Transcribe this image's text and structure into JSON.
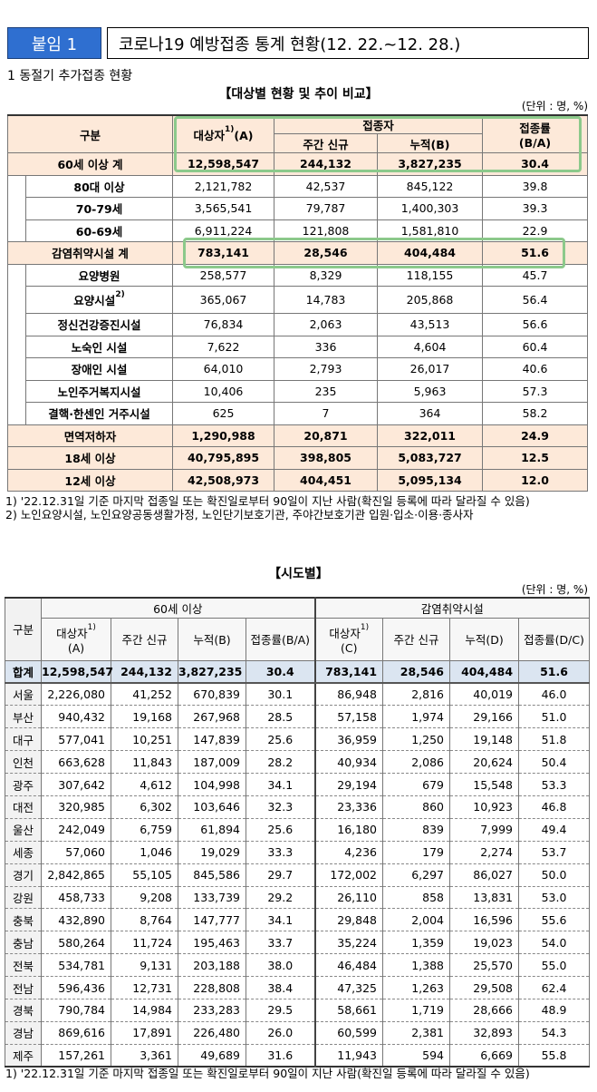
{
  "header": {
    "badge": "붙임 1",
    "title": "코로나19 예방접종 통계 현황(12. 22.~12. 28.)"
  },
  "section": "1  동절기 추가접종 현황",
  "table1": {
    "title": "【대상별 현황 및 추이 비교】",
    "unit": "(단위 : 명, %)",
    "header": {
      "corner": "구분",
      "group": "접종자",
      "columns": [
        {
          "text": "대상자",
          "sup": "1)",
          "suffix": "(A)"
        },
        "주간 신규",
        "누적(B)",
        {
          "text": "접종률",
          "line2": "(B/A)"
        }
      ]
    },
    "sections": [
      {
        "label": "60세 이상 계",
        "cells": [
          "12,598,547",
          "244,132",
          "3,827,235",
          "30.4"
        ],
        "items": [
          {
            "label": "80대 이상",
            "cells": [
              "2,121,782",
              "42,537",
              "845,122",
              "39.8"
            ]
          },
          {
            "label": "70-79세",
            "cells": [
              "3,565,541",
              "79,787",
              "1,400,303",
              "39.3"
            ]
          },
          {
            "label": "60-69세",
            "cells": [
              "6,911,224",
              "121,808",
              "1,581,810",
              "22.9"
            ]
          }
        ]
      },
      {
        "label": "감염취약시설 계",
        "cells": [
          "783,141",
          "28,546",
          "404,484",
          "51.6"
        ],
        "items": [
          {
            "label": "요양병원",
            "cells": [
              "258,577",
              "8,329",
              "118,155",
              "45.7"
            ]
          },
          {
            "label": "요양시설",
            "sup": "2)",
            "cells": [
              "365,067",
              "14,783",
              "205,868",
              "56.4"
            ]
          },
          {
            "label": "정신건강증진시설",
            "cells": [
              "76,834",
              "2,063",
              "43,513",
              "56.6"
            ]
          },
          {
            "label": "노숙인 시설",
            "cells": [
              "7,622",
              "336",
              "4,604",
              "60.4"
            ]
          },
          {
            "label": "장애인 시설",
            "cells": [
              "64,010",
              "2,793",
              "26,017",
              "40.6"
            ]
          },
          {
            "label": "노인주거복지시설",
            "cells": [
              "10,406",
              "235",
              "5,963",
              "57.3"
            ]
          },
          {
            "label": "결핵·한센인 거주시설",
            "cells": [
              "625",
              "7",
              "364",
              "58.2"
            ]
          }
        ]
      },
      {
        "label": "면역저하자",
        "cells": [
          "1,290,988",
          "20,871",
          "322,011",
          "24.9"
        ]
      },
      {
        "label": "18세 이상",
        "cells": [
          "40,795,895",
          "398,805",
          "5,083,727",
          "12.5"
        ]
      },
      {
        "label": "12세 이상",
        "cells": [
          "42,508,973",
          "404,451",
          "5,095,134",
          "12.0"
        ]
      }
    ],
    "notes": [
      "1) '22.12.31일 기준 마지막 접종일 또는 확진일로부터 90일이 지난 사람(확진일 등록에 따라 달라질 수 있음)",
      "2) 노인요양시설, 노인요양공동생활가정, 노인단기보호기관, 주야간보호기관 입원·입소·이용·종사자"
    ]
  },
  "table2": {
    "title": "【시도별】",
    "unit": "(단위 : 명, %)",
    "header": {
      "corner": "구분",
      "group1": "60세 이상",
      "group2": "감염취약시설",
      "columns": [
        {
          "text": "대상자",
          "sup": "1)",
          "line2": "(A)"
        },
        "주간 신규",
        "누적(B)",
        "접종률(B/A)",
        {
          "text": "대상자",
          "sup": "1)",
          "line2": "(C)"
        },
        "주간 신규",
        "누적(D)",
        "접종률(D/C)"
      ]
    },
    "total": {
      "label": "합계",
      "cells": [
        "12,598,547",
        "244,132",
        "3,827,235",
        "30.4",
        "783,141",
        "28,546",
        "404,484",
        "51.6"
      ]
    },
    "rows": [
      {
        "label": "서울",
        "cells": [
          "2,226,080",
          "41,252",
          "670,839",
          "30.1",
          "86,948",
          "2,816",
          "40,019",
          "46.0"
        ]
      },
      {
        "label": "부산",
        "cells": [
          "940,432",
          "19,168",
          "267,968",
          "28.5",
          "57,158",
          "1,974",
          "29,166",
          "51.0"
        ]
      },
      {
        "label": "대구",
        "cells": [
          "577,041",
          "10,251",
          "147,839",
          "25.6",
          "36,959",
          "1,250",
          "19,148",
          "51.8"
        ]
      },
      {
        "label": "인천",
        "cells": [
          "663,628",
          "11,843",
          "187,009",
          "28.2",
          "40,934",
          "2,086",
          "20,624",
          "50.4"
        ]
      },
      {
        "label": "광주",
        "cells": [
          "307,642",
          "4,612",
          "104,998",
          "34.1",
          "29,194",
          "679",
          "15,548",
          "53.3"
        ]
      },
      {
        "label": "대전",
        "cells": [
          "320,985",
          "6,302",
          "103,646",
          "32.3",
          "23,336",
          "860",
          "10,923",
          "46.8"
        ]
      },
      {
        "label": "울산",
        "cells": [
          "242,049",
          "6,759",
          "61,894",
          "25.6",
          "16,180",
          "839",
          "7,999",
          "49.4"
        ]
      },
      {
        "label": "세종",
        "cells": [
          "57,060",
          "1,046",
          "19,029",
          "33.3",
          "4,236",
          "179",
          "2,274",
          "53.7"
        ]
      },
      {
        "label": "경기",
        "cells": [
          "2,842,865",
          "55,105",
          "845,586",
          "29.7",
          "172,002",
          "6,297",
          "86,027",
          "50.0"
        ]
      },
      {
        "label": "강원",
        "cells": [
          "458,733",
          "9,208",
          "133,739",
          "29.2",
          "26,110",
          "858",
          "13,831",
          "53.0"
        ]
      },
      {
        "label": "충북",
        "cells": [
          "432,890",
          "8,764",
          "147,777",
          "34.1",
          "29,848",
          "2,004",
          "16,596",
          "55.6"
        ]
      },
      {
        "label": "충남",
        "cells": [
          "580,264",
          "11,724",
          "195,463",
          "33.7",
          "35,224",
          "1,359",
          "19,023",
          "54.0"
        ]
      },
      {
        "label": "전북",
        "cells": [
          "534,781",
          "9,131",
          "203,188",
          "38.0",
          "46,484",
          "1,388",
          "25,570",
          "55.0"
        ]
      },
      {
        "label": "전남",
        "cells": [
          "596,436",
          "12,731",
          "228,808",
          "38.4",
          "47,325",
          "1,263",
          "29,508",
          "62.4"
        ]
      },
      {
        "label": "경북",
        "cells": [
          "790,784",
          "14,984",
          "233,283",
          "29.5",
          "58,661",
          "1,719",
          "28,666",
          "48.9"
        ]
      },
      {
        "label": "경남",
        "cells": [
          "869,616",
          "17,891",
          "226,480",
          "26.0",
          "60,599",
          "2,381",
          "32,893",
          "54.3"
        ]
      },
      {
        "label": "제주",
        "cells": [
          "157,261",
          "3,361",
          "49,689",
          "31.6",
          "11,943",
          "594",
          "6,669",
          "55.8"
        ]
      }
    ],
    "notes": [
      "1) '22.12.31일 기준 마지막 접종일 또는 확진일로부터 90일이 지난 사람(확진일 등록에 따라 달라질 수 있음)"
    ]
  }
}
